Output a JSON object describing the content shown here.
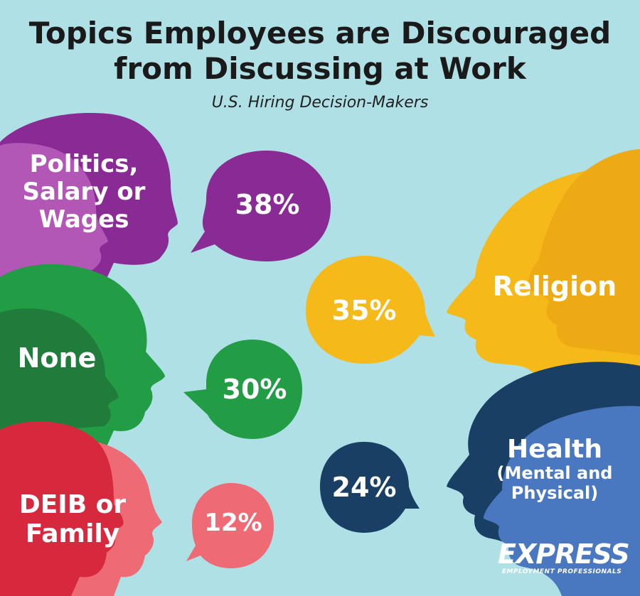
{
  "header": {
    "title_line1": "Topics Employees are Discouraged",
    "title_line2": "from Discussing at Work",
    "subtitle": "U.S. Hiring Decision-Makers"
  },
  "colors": {
    "background": "#aee0e6",
    "purple": "#8a2a95",
    "purple_light": "#b357b6",
    "yellow": "#f6b91a",
    "yellow_dark": "#eeaa14",
    "green": "#229c45",
    "green_dark": "#1f7c3b",
    "navy": "#1a3f64",
    "blue": "#4a78c0",
    "red": "#d6293e",
    "pink": "#ee6a75"
  },
  "chart_data": {
    "type": "bar",
    "title": "Topics Employees are Discouraged from Discussing at Work",
    "subtitle": "U.S. Hiring Decision-Makers",
    "unit": "%",
    "categories": [
      "Politics, Salary or Wages",
      "Religion",
      "None",
      "Health (Mental and Physical)",
      "DEIB or Family"
    ],
    "values": [
      38,
      35,
      30,
      24,
      12
    ],
    "labels": {
      "politics": [
        "Politics,",
        "Salary or",
        "Wages"
      ],
      "religion": [
        "Religion"
      ],
      "none": [
        "None"
      ],
      "health": [
        "Health",
        "(Mental and",
        "Physical)"
      ],
      "deib": [
        "DEIB or",
        "Family"
      ]
    },
    "value_labels": [
      "38%",
      "35%",
      "30%",
      "24%",
      "12%"
    ]
  },
  "logo": {
    "name": "EXPRESS",
    "tagline": "EMPLOYMENT PROFESSIONALS"
  }
}
